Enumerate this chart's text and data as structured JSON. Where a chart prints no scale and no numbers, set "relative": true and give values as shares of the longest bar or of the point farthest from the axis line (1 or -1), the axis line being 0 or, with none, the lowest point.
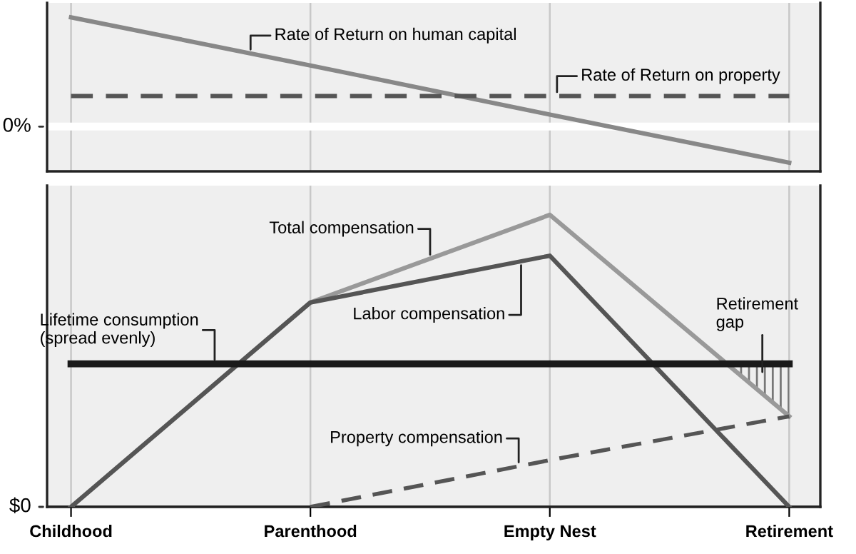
{
  "chart_data": [
    {
      "type": "line",
      "relative": true,
      "categories": [
        null,
        null,
        null,
        null
      ],
      "grid": "x",
      "tick_labels": false,
      "legend": false,
      "series": [
        {
          "name": "Rate of Return on human capital",
          "color": "#888888",
          "values": [
            1,
            0.56,
            0.11,
            -0.33
          ],
          "line_style": "solid"
        },
        {
          "name": "Rate of Return on property",
          "color": "#555555",
          "values": [
            0.28,
            0.28,
            0.28,
            0.28
          ],
          "line_style": "dashed"
        }
      ],
      "ref_lines": [
        {
          "axis": "y",
          "value": 0,
          "label": "0%",
          "color": "#ffffff"
        }
      ]
    },
    {
      "type": "line",
      "relative": true,
      "categories": [
        "Childhood",
        "Parenthood",
        "Empty Nest",
        "Retirement"
      ],
      "grid": "x",
      "tick_labels": "x",
      "legend": false,
      "series": [
        {
          "name": "Total compensation",
          "color": "#999999",
          "values": [
            0,
            0.7,
            1,
            0.31
          ],
          "line_style": "solid"
        },
        {
          "name": "Labor compensation",
          "color": "#555555",
          "values": [
            0,
            0.7,
            0.86,
            0
          ],
          "line_style": "solid"
        },
        {
          "name": "Lifetime consumption\n(spread evenly)",
          "color": "#1a1a1a",
          "values": [
            0.49,
            0.49,
            0.49,
            0.49
          ],
          "line_style": "solid"
        },
        {
          "name": "Property compensation",
          "color": "#555555",
          "values": [
            null,
            0,
            0.16,
            0.31
          ],
          "line_style": "dashed"
        }
      ],
      "ref_lines": [
        {
          "axis": "y",
          "value": 0,
          "label": "$0",
          "color": "#222222"
        }
      ],
      "annotations": [
        "Retirement\ngap"
      ]
    }
  ]
}
